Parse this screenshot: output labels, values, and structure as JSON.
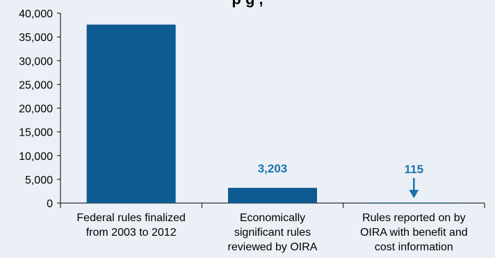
{
  "chart_data": {
    "type": "bar",
    "title": "p                                                         g      ,",
    "categories": [
      [
        "Federal rules finalized",
        "from 2003 to 2012"
      ],
      [
        "Economically",
        "significant rules",
        "reviewed by OIRA"
      ],
      [
        "Rules reported on by",
        "OIRA with benefit and",
        "cost information"
      ]
    ],
    "values": [
      37600,
      3203,
      115
    ],
    "data_labels": [
      "",
      "3,203",
      "115"
    ],
    "ylim": [
      0,
      40000
    ],
    "yticks": [
      "0",
      "5,000",
      "10,000",
      "15,000",
      "20,000",
      "25,000",
      "30,000",
      "35,000",
      "40,000"
    ],
    "colors": {
      "bar": "#0e5a92",
      "label": "#1b73ae",
      "background": "#eaf0f6",
      "axis": "#000000"
    },
    "grid": false,
    "annotation": {
      "type": "arrow",
      "category_index": 2,
      "icon": "down-arrow-icon"
    }
  }
}
